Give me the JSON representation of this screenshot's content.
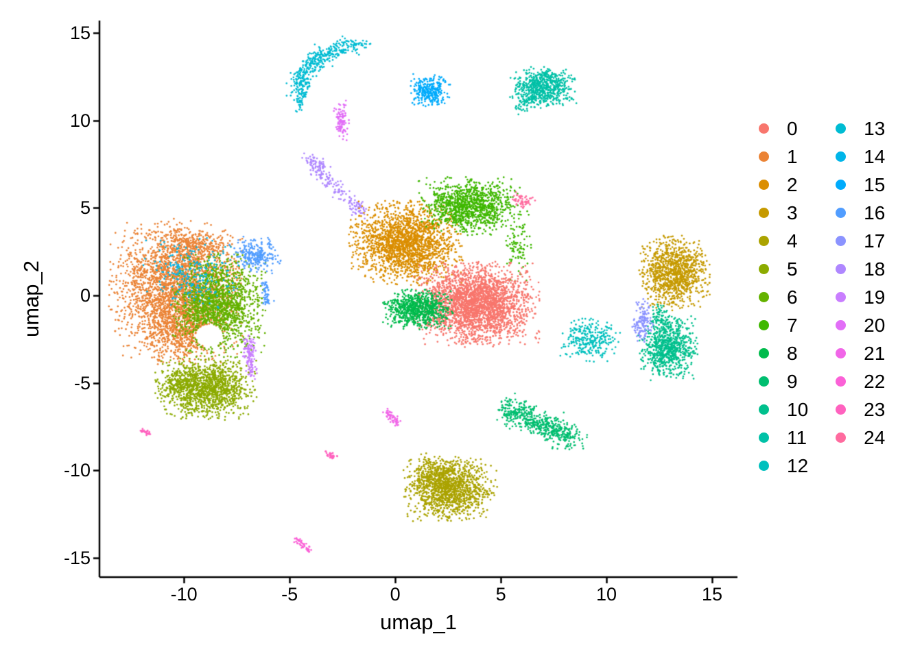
{
  "page": {
    "background": "#FFFFFF"
  },
  "chart_data": {
    "type": "scatter",
    "title": "",
    "xlabel": "umap_1",
    "ylabel": "umap_2",
    "xlim": [
      -14,
      16.2
    ],
    "ylim": [
      -16.1,
      15.7
    ],
    "xticks": [
      "-10",
      "-5",
      "0",
      "5",
      "10",
      "15"
    ],
    "xtick_values": [
      -10,
      -5,
      0,
      5,
      10,
      15
    ],
    "yticks": [
      "-15",
      "-10",
      "-5",
      "0",
      "5",
      "10",
      "15"
    ],
    "ytick_values": [
      -15,
      -10,
      -5,
      0,
      5,
      10,
      15
    ],
    "grid": false,
    "legend_position": "right",
    "legend_split": 13,
    "clusters": [
      {
        "id": 0,
        "label": "0",
        "color": "#F8766D"
      },
      {
        "id": 1,
        "label": "1",
        "color": "#EB8335"
      },
      {
        "id": 2,
        "label": "2",
        "color": "#DB8E00"
      },
      {
        "id": 3,
        "label": "3",
        "color": "#C69A00"
      },
      {
        "id": 4,
        "label": "4",
        "color": "#ABA300"
      },
      {
        "id": 5,
        "label": "5",
        "color": "#8CAB00"
      },
      {
        "id": 6,
        "label": "6",
        "color": "#64B200"
      },
      {
        "id": 7,
        "label": "7",
        "color": "#3FB800"
      },
      {
        "id": 8,
        "label": "8",
        "color": "#00BB4C"
      },
      {
        "id": 9,
        "label": "9",
        "color": "#00BE70"
      },
      {
        "id": 10,
        "label": "10",
        "color": "#00C08D"
      },
      {
        "id": 11,
        "label": "11",
        "color": "#00C1A7"
      },
      {
        "id": 12,
        "label": "12",
        "color": "#00C0BE"
      },
      {
        "id": 13,
        "label": "13",
        "color": "#00BCD3"
      },
      {
        "id": 14,
        "label": "14",
        "color": "#00B5E9"
      },
      {
        "id": 15,
        "label": "15",
        "color": "#00ABFC"
      },
      {
        "id": 16,
        "label": "16",
        "color": "#519DFF"
      },
      {
        "id": 17,
        "label": "17",
        "color": "#8B93FF"
      },
      {
        "id": 18,
        "label": "18",
        "color": "#AF87FF"
      },
      {
        "id": 19,
        "label": "19",
        "color": "#C97EFF"
      },
      {
        "id": 20,
        "label": "20",
        "color": "#E26EF7"
      },
      {
        "id": 21,
        "label": "21",
        "color": "#F166E8"
      },
      {
        "id": 22,
        "label": "22",
        "color": "#FB61D7"
      },
      {
        "id": 23,
        "label": "23",
        "color": "#FF62BF"
      },
      {
        "id": 24,
        "label": "24",
        "color": "#FF6B9F"
      }
    ],
    "islands": [
      {
        "cluster": 1,
        "type": "gauss",
        "center": [
          -10.4,
          0.3
        ],
        "sx": 1.35,
        "sy": 1.75,
        "n": 2600,
        "hole": [
          -8.8,
          -2.3,
          0.65
        ]
      },
      {
        "cluster": 1,
        "type": "gauss",
        "center": [
          -10.0,
          -2.0
        ],
        "sx": 0.85,
        "sy": 0.85,
        "n": 450,
        "hole": [
          -8.8,
          -2.3,
          0.65
        ]
      },
      {
        "cluster": 1,
        "type": "gauss",
        "center": [
          -9.6,
          2.9
        ],
        "sx": 0.75,
        "sy": 0.45,
        "n": 280
      },
      {
        "cluster": 6,
        "type": "gauss",
        "center": [
          -8.35,
          -0.5
        ],
        "sx": 0.95,
        "sy": 1.3,
        "n": 1600,
        "hole": [
          -8.8,
          -2.3,
          0.65
        ]
      },
      {
        "cluster": 5,
        "type": "gauss",
        "center": [
          -8.9,
          -5.3
        ],
        "sx": 1.0,
        "sy": 0.78,
        "n": 1300
      },
      {
        "cluster": 5,
        "type": "gauss",
        "center": [
          -10.2,
          -5.1
        ],
        "sx": 0.5,
        "sy": 0.4,
        "n": 160
      },
      {
        "cluster": 14,
        "type": "gauss",
        "center": [
          -9.6,
          1.2
        ],
        "sx": 1.0,
        "sy": 0.9,
        "n": 230
      },
      {
        "cluster": 16,
        "type": "gauss",
        "center": [
          -6.6,
          2.3
        ],
        "sx": 0.55,
        "sy": 0.45,
        "n": 260
      },
      {
        "cluster": 16,
        "type": "streak",
        "p1": [
          -6.2,
          0.7
        ],
        "p2": [
          -6.05,
          -0.5
        ],
        "w": 0.1,
        "n": 60
      },
      {
        "cluster": 19,
        "type": "streak",
        "p1": [
          -7.0,
          -2.4
        ],
        "p2": [
          -6.8,
          -4.6
        ],
        "w": 0.13,
        "n": 130
      },
      {
        "cluster": 23,
        "type": "streak",
        "p1": [
          -12.05,
          -7.65
        ],
        "p2": [
          -11.6,
          -7.95
        ],
        "w": 0.07,
        "n": 25
      },
      {
        "cluster": 13,
        "type": "arc",
        "p0": [
          -4.45,
          11.4
        ],
        "p1": [
          -4.75,
          13.8
        ],
        "p2": [
          -1.6,
          14.35
        ],
        "w": 0.24,
        "n": 430
      },
      {
        "cluster": 13,
        "type": "streak",
        "p1": [
          -4.55,
          10.6
        ],
        "p2": [
          -4.45,
          11.3
        ],
        "w": 0.08,
        "n": 25
      },
      {
        "cluster": 20,
        "type": "gauss",
        "center": [
          -2.55,
          10.0
        ],
        "sx": 0.17,
        "sy": 0.5,
        "n": 110
      },
      {
        "cluster": 18,
        "type": "streak",
        "p1": [
          -4.15,
          7.85
        ],
        "p2": [
          -1.65,
          4.75
        ],
        "w": 0.2,
        "n": 210
      },
      {
        "cluster": 2,
        "type": "gauss",
        "center": [
          0.5,
          3.0
        ],
        "sx": 1.15,
        "sy": 1.05,
        "n": 2000
      },
      {
        "cluster": 7,
        "type": "gauss",
        "center": [
          3.5,
          5.1
        ],
        "sx": 1.05,
        "sy": 0.72,
        "n": 1150
      },
      {
        "cluster": 7,
        "type": "gauss",
        "center": [
          5.8,
          3.0
        ],
        "sx": 0.3,
        "sy": 1.0,
        "n": 90
      },
      {
        "cluster": 0,
        "type": "gauss",
        "center": [
          3.85,
          -0.5
        ],
        "sx": 1.28,
        "sy": 1.05,
        "n": 2700
      },
      {
        "cluster": 8,
        "type": "gauss",
        "center": [
          1.1,
          -0.8
        ],
        "sx": 0.72,
        "sy": 0.5,
        "n": 800
      },
      {
        "cluster": 24,
        "type": "gauss",
        "center": [
          6.05,
          5.4
        ],
        "sx": 0.28,
        "sy": 0.22,
        "n": 55
      },
      {
        "cluster": 3,
        "type": "gauss",
        "center": [
          13.2,
          1.3
        ],
        "sx": 0.72,
        "sy": 0.92,
        "n": 1100
      },
      {
        "cluster": 10,
        "type": "gauss",
        "center": [
          12.9,
          -3.0
        ],
        "sx": 0.62,
        "sy": 0.8,
        "n": 800
      },
      {
        "cluster": 10,
        "type": "streak",
        "p1": [
          12.45,
          -0.8
        ],
        "p2": [
          12.75,
          -2.0
        ],
        "w": 0.18,
        "n": 80
      },
      {
        "cluster": 17,
        "type": "gauss",
        "center": [
          11.7,
          -1.5
        ],
        "sx": 0.22,
        "sy": 0.55,
        "n": 140
      },
      {
        "cluster": 12,
        "type": "gauss",
        "center": [
          9.2,
          -2.5
        ],
        "sx": 0.62,
        "sy": 0.55,
        "n": 290
      },
      {
        "cluster": 11,
        "type": "gauss",
        "center": [
          7.0,
          11.9
        ],
        "sx": 0.68,
        "sy": 0.52,
        "n": 640
      },
      {
        "cluster": 11,
        "type": "streak",
        "p1": [
          5.85,
          10.65
        ],
        "p2": [
          6.6,
          11.45
        ],
        "w": 0.15,
        "n": 70
      },
      {
        "cluster": 15,
        "type": "gauss",
        "center": [
          1.62,
          11.7
        ],
        "sx": 0.42,
        "sy": 0.42,
        "n": 300
      },
      {
        "cluster": 9,
        "type": "streak",
        "p1": [
          5.15,
          -6.45
        ],
        "p2": [
          8.4,
          -8.15
        ],
        "w": 0.33,
        "n": 560
      },
      {
        "cluster": 4,
        "type": "gauss",
        "center": [
          2.6,
          -11.1
        ],
        "sx": 0.95,
        "sy": 0.78,
        "n": 1250
      },
      {
        "cluster": 4,
        "type": "gauss",
        "center": [
          1.8,
          -10.2
        ],
        "sx": 0.55,
        "sy": 0.5,
        "n": 260
      },
      {
        "cluster": 21,
        "type": "streak",
        "p1": [
          -0.45,
          -6.65
        ],
        "p2": [
          0.15,
          -7.35
        ],
        "w": 0.1,
        "n": 60
      },
      {
        "cluster": 22,
        "type": "streak",
        "p1": [
          -4.65,
          -13.95
        ],
        "p2": [
          -4.1,
          -14.6
        ],
        "w": 0.09,
        "n": 45
      },
      {
        "cluster": 23,
        "type": "streak",
        "p1": [
          -3.3,
          -9.0
        ],
        "p2": [
          -2.85,
          -9.25
        ],
        "w": 0.08,
        "n": 35
      }
    ]
  }
}
